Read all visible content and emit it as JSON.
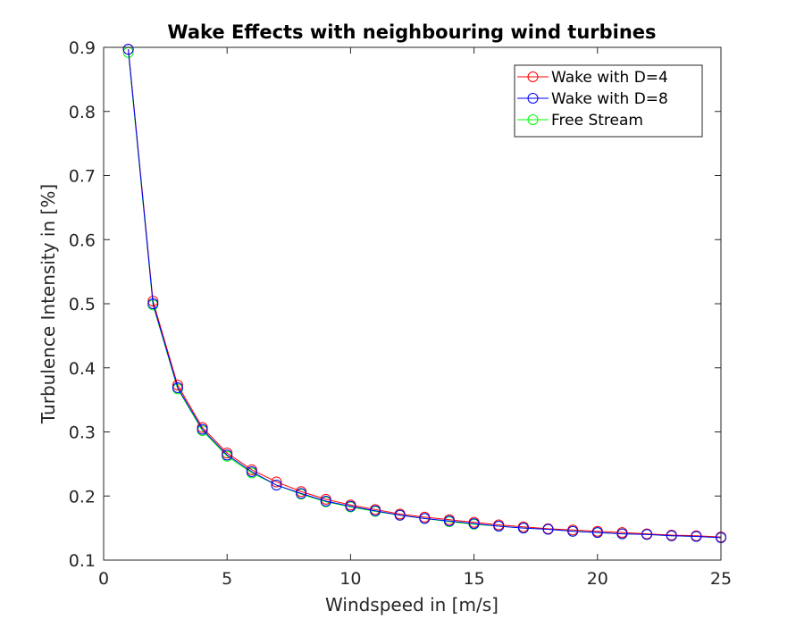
{
  "chart_data": {
    "type": "line",
    "title": "Wake Effects with neighbouring wind turbines",
    "xlabel": "Windspeed in [m/s]",
    "ylabel": "Turbulence Intensity in [%]",
    "xlim": [
      0,
      25
    ],
    "ylim": [
      0.1,
      0.9
    ],
    "xticks": [
      0,
      5,
      10,
      15,
      20,
      25
    ],
    "yticks": [
      0.1,
      0.2,
      0.3,
      0.4,
      0.5,
      0.6,
      0.7,
      0.8,
      0.9
    ],
    "grid": false,
    "legend_position": "top-right",
    "marker": "circle",
    "x": [
      1,
      2,
      3,
      4,
      5,
      6,
      7,
      8,
      9,
      10,
      11,
      12,
      13,
      14,
      15,
      16,
      17,
      18,
      19,
      20,
      21,
      22,
      23,
      24,
      25
    ],
    "series": [
      {
        "name": "Wake with D=4",
        "color": "#ff0000",
        "values": [
          0.897,
          0.504,
          0.373,
          0.307,
          0.267,
          0.241,
          0.222,
          0.207,
          0.195,
          0.186,
          0.179,
          0.172,
          0.167,
          0.163,
          0.159,
          0.155,
          0.152,
          0.149,
          0.147,
          0.145,
          0.143,
          0.141,
          0.139,
          0.138,
          0.136
        ]
      },
      {
        "name": "Wake with D=8",
        "color": "#0000ff",
        "values": [
          0.897,
          0.5,
          0.369,
          0.304,
          0.264,
          0.238,
          0.217,
          0.204,
          0.192,
          0.184,
          0.177,
          0.17,
          0.165,
          0.161,
          0.157,
          0.153,
          0.15,
          0.148,
          0.145,
          0.143,
          0.141,
          0.14,
          0.138,
          0.137,
          0.135
        ]
      },
      {
        "name": "Free Stream",
        "color": "#00ff00",
        "values": [
          0.892,
          0.498,
          0.367,
          0.302,
          0.262,
          0.236,
          0.217,
          0.203,
          0.191,
          0.183,
          0.176,
          0.17,
          0.165,
          0.16,
          0.156,
          0.153,
          0.15,
          0.148,
          0.145,
          0.143,
          0.141,
          0.14,
          0.138,
          0.137,
          0.135
        ]
      }
    ]
  }
}
